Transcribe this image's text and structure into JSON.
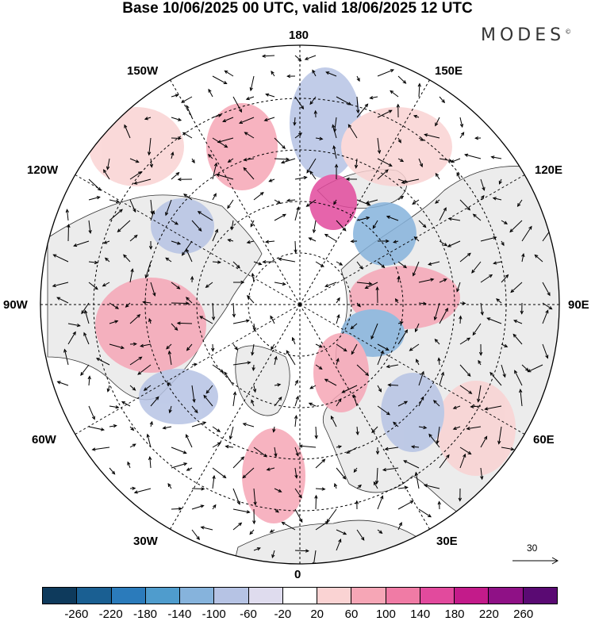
{
  "title": "Base 10/06/2025 00 UTC, valid 18/06/2025 12 UTC",
  "brand": "MODES",
  "brand_mark": "©",
  "lon_labels": {
    "n180": "180",
    "w150": "150W",
    "e150": "150E",
    "w120": "120W",
    "e120": "120E",
    "w90": "90W",
    "e90": "90E",
    "w60": "60W",
    "e60": "60E",
    "w30": "30W",
    "e30": "30E",
    "s0": "0"
  },
  "reference_vector": {
    "label": "30",
    "value": 30
  },
  "colorbar": {
    "colors": [
      "#0e3a5c",
      "#1a5f92",
      "#2b7bbb",
      "#4f9ccd",
      "#86b3dc",
      "#b6c3e4",
      "#dfdcee",
      "#ffffff",
      "#fad3d3",
      "#f6a6b6",
      "#f07ba5",
      "#e24a9d",
      "#c31b8a",
      "#8f1186",
      "#5a0a73"
    ],
    "ticks": [
      "-260",
      "-220",
      "-180",
      "-140",
      "-100",
      "-60",
      "-20",
      "20",
      "60",
      "100",
      "140",
      "180",
      "220",
      "260"
    ]
  },
  "colors": {
    "grid": "#000000",
    "land_fill": "#eeeeee",
    "coast": "#333333"
  }
}
